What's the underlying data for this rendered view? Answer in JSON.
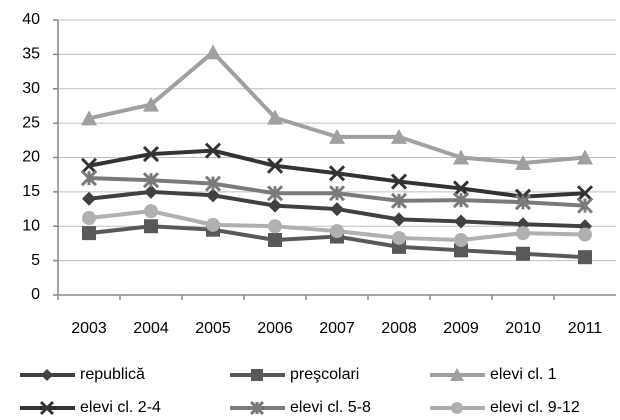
{
  "chart_data": {
    "type": "line",
    "categories": [
      "2003",
      "2004",
      "2005",
      "2006",
      "2007",
      "2008",
      "2009",
      "2010",
      "2011"
    ],
    "series": [
      {
        "name": "republică",
        "color": "#404040",
        "marker": "diamond",
        "values": [
          14,
          15,
          14.5,
          13,
          12.5,
          11,
          10.7,
          10.3,
          10
        ]
      },
      {
        "name": "preşcolari",
        "color": "#595959",
        "marker": "square",
        "values": [
          9,
          10,
          9.5,
          8,
          8.5,
          7,
          6.5,
          6,
          5.5
        ]
      },
      {
        "name": "elevi cl. 1",
        "color": "#a0a0a0",
        "marker": "triangle",
        "values": [
          25.7,
          27.7,
          35.3,
          25.8,
          23,
          23,
          20,
          19.2,
          20
        ]
      },
      {
        "name": "elevi cl. 2-4",
        "color": "#333333",
        "marker": "x",
        "values": [
          18.8,
          20.5,
          21,
          18.8,
          17.7,
          16.5,
          15.5,
          14.3,
          14.8
        ]
      },
      {
        "name": "elevi cl. 5-8",
        "color": "#7a7a7a",
        "marker": "star",
        "values": [
          17,
          16.7,
          16.2,
          14.8,
          14.8,
          13.7,
          13.8,
          13.5,
          13
        ]
      },
      {
        "name": "elevi cl. 9-12",
        "color": "#b0b0b0",
        "marker": "circle",
        "values": [
          11.2,
          12.2,
          10.2,
          10,
          9.3,
          8.3,
          8,
          9,
          8.8
        ]
      }
    ],
    "ylim": [
      0,
      40
    ],
    "yticks": [
      0,
      5,
      10,
      15,
      20,
      25,
      30,
      35,
      40
    ],
    "grid": true,
    "legend": "bottom"
  }
}
